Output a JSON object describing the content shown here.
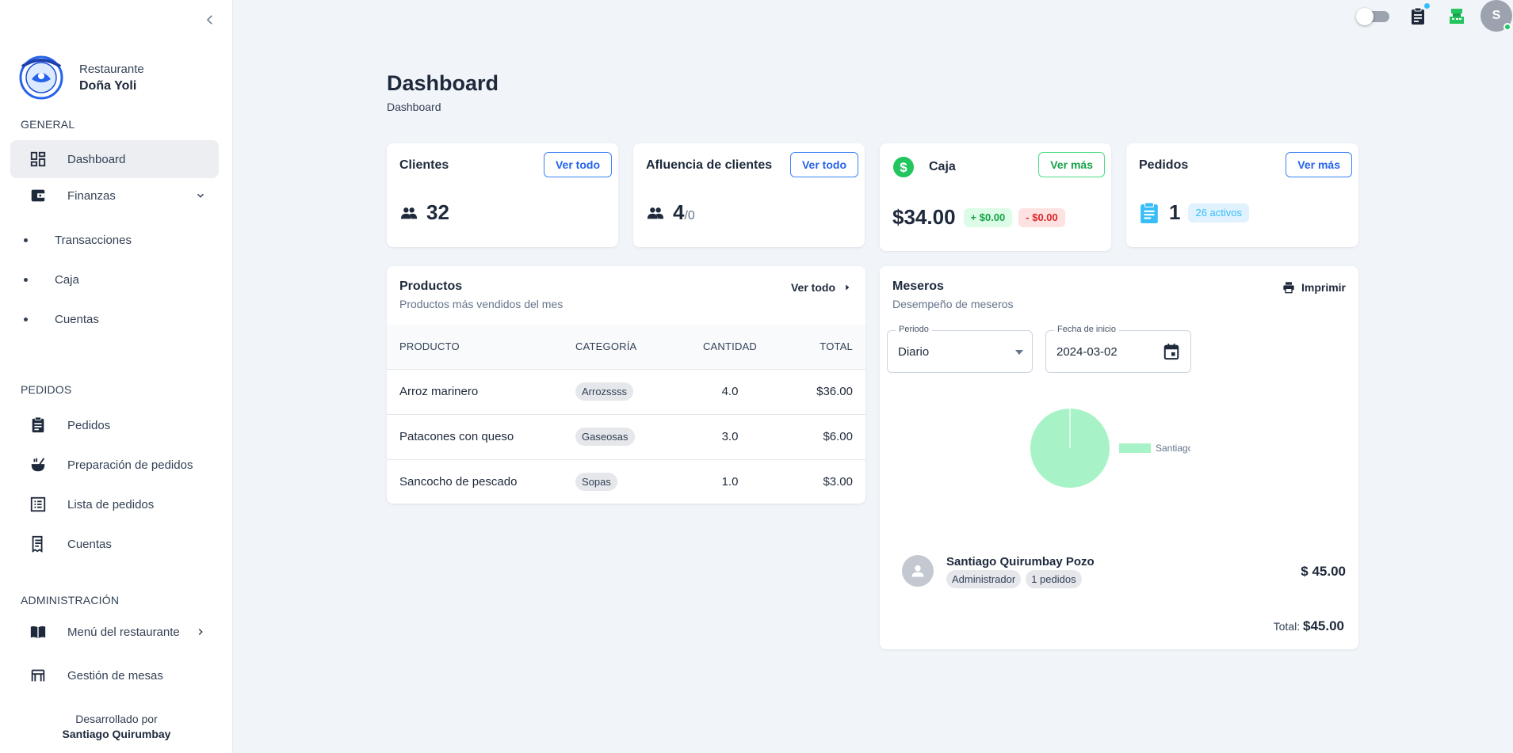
{
  "sidebar": {
    "brand_sub": "Restaurante",
    "brand_name": "Doña Yoli",
    "sections": {
      "general": "GENERAL",
      "pedidos": "PEDIDOS",
      "administracion": "ADMINISTRACIÓN"
    },
    "items": {
      "dashboard": "Dashboard",
      "finanzas": "Finanzas",
      "transacciones": "Transacciones",
      "caja": "Caja",
      "cuentas_sub": "Cuentas",
      "pedidos": "Pedidos",
      "preparacion": "Preparación de pedidos",
      "lista": "Lista de pedidos",
      "cuentas": "Cuentas",
      "menu": "Menú del restaurante",
      "mesas": "Gestión de mesas"
    },
    "developer_label": "Desarrollado por",
    "developer_name": "Santiago Quirumbay"
  },
  "topbar": {
    "avatar_initial": "S"
  },
  "header": {
    "title": "Dashboard",
    "breadcrumb": "Dashboard"
  },
  "cards": {
    "clientes": {
      "title": "Clientes",
      "button": "Ver todo",
      "value": "32"
    },
    "afluencia": {
      "title": "Afluencia de clientes",
      "button": "Ver todo",
      "value": "4",
      "suffix": "/0"
    },
    "caja": {
      "title": "Caja",
      "button": "Ver más",
      "value": "$34.00",
      "plus": "+ $0.00",
      "minus": "- $0.00"
    },
    "pedidos": {
      "title": "Pedidos",
      "button": "Ver más",
      "value": "1",
      "active": "26 activos"
    }
  },
  "productos": {
    "title": "Productos",
    "subtitle": "Productos más vendidos del mes",
    "link": "Ver todo",
    "columns": [
      "PRODUCTO",
      "CATEGORÍA",
      "CANTIDAD",
      "TOTAL"
    ],
    "rows": [
      {
        "producto": "Arroz marinero",
        "categoria": "Arrozssss",
        "cantidad": "4.0",
        "total": "$36.00"
      },
      {
        "producto": "Patacones con queso",
        "categoria": "Gaseosas",
        "cantidad": "3.0",
        "total": "$6.00"
      },
      {
        "producto": "Sancocho de pescado",
        "categoria": "Sopas",
        "cantidad": "1.0",
        "total": "$3.00"
      }
    ]
  },
  "meseros": {
    "title": "Meseros",
    "subtitle": "Desempeño de meseros",
    "print": "Imprimir",
    "periodo_label": "Periodo",
    "periodo_value": "Diario",
    "fecha_label": "Fecha de inicio",
    "fecha_value": "2024-03-02",
    "waiter": {
      "name": "Santiago Quirumbay Pozo",
      "role": "Administrador",
      "orders": "1 pedidos",
      "amount": "$ 45.00"
    },
    "total_label": "Total:",
    "total_value": "$45.00"
  },
  "chart_data": {
    "type": "pie",
    "legend_position": "right",
    "legend_text": "Santiago",
    "series": [
      {
        "name": "Santiago",
        "values": [
          45.0
        ]
      }
    ],
    "colors": [
      "#a7f3c7"
    ]
  }
}
